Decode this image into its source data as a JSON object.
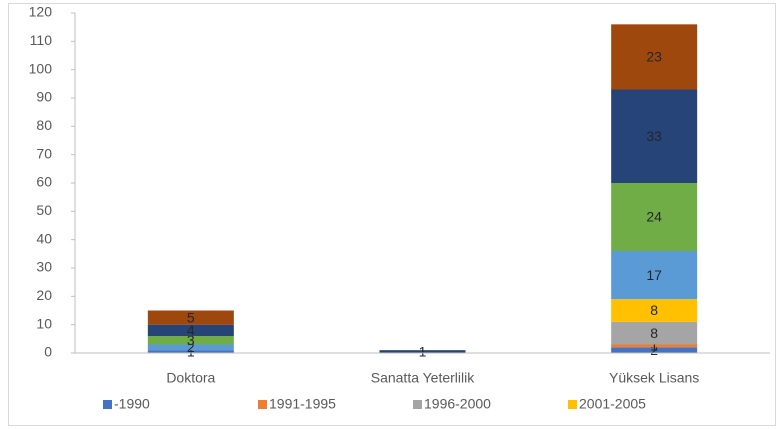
{
  "chart_data": {
    "type": "stacked_bar",
    "categories": [
      "Doktora",
      "Sanatta Yeterlilik",
      "Yüksek Lisans"
    ],
    "series": [
      {
        "name": "-1990",
        "color": "#4472c4",
        "values": [
          1,
          null,
          2
        ]
      },
      {
        "name": "1991-1995",
        "color": "#ed7d31",
        "values": [
          null,
          null,
          1
        ]
      },
      {
        "name": "1996-2000",
        "color": "#a5a5a5",
        "values": [
          null,
          null,
          8
        ]
      },
      {
        "name": "2001-2005",
        "color": "#ffc000",
        "values": [
          null,
          null,
          8
        ]
      },
      {
        "color": "#5b9bd5",
        "values": [
          2,
          null,
          17
        ]
      },
      {
        "color": "#70ad47",
        "values": [
          3,
          null,
          24
        ]
      },
      {
        "color": "#264478",
        "values": [
          4,
          1,
          33
        ]
      },
      {
        "color": "#9e480e",
        "values": [
          5,
          null,
          23
        ]
      }
    ],
    "ylim": [
      0,
      120
    ],
    "yticks": [
      0,
      10,
      20,
      30,
      40,
      50,
      60,
      70,
      80,
      90,
      100,
      110,
      120
    ],
    "grid": false
  }
}
